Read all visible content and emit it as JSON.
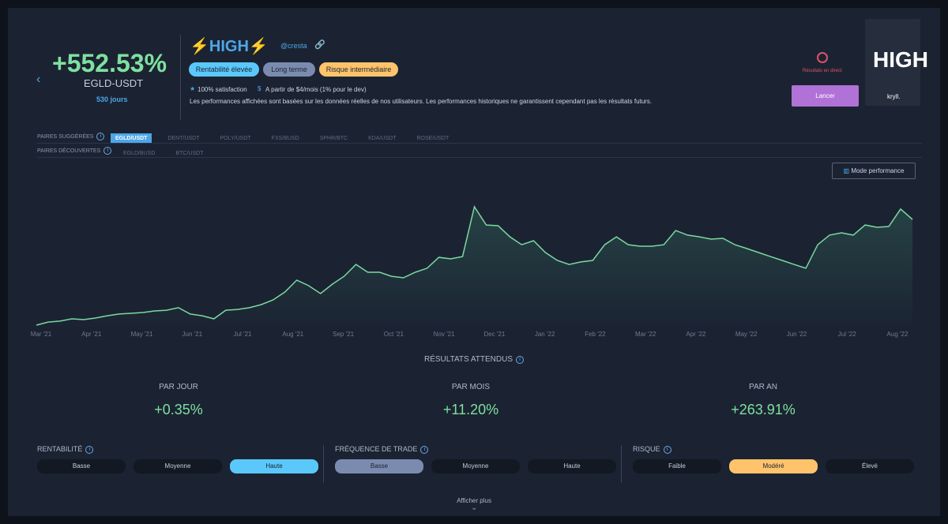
{
  "header": {
    "return": "+552.53%",
    "pair": "EGLD-USDT",
    "duration": "530 jours",
    "name": "⚡HIGH⚡",
    "author": "@cresta",
    "tags": [
      "Rentabilité élevée",
      "Long terme",
      "Risque intermédiaire"
    ],
    "satisfaction": "100% satisfaction",
    "price": "A partir de $4/mois (1% pour le dev)",
    "disclaimer": "Les performances affichées sont basées sur les données réelles de nos utilisateurs. Les performances historiques ne garantissent cependant pas les résultats futurs.",
    "live": "Résultats en direct",
    "launch": "Lancer",
    "logo": "HIGH",
    "logo_brand": "kryll."
  },
  "pairs": {
    "suggested_label": "PAIRES SUGGÉRÉES",
    "suggested": [
      "EGLD/USDT",
      "DENT/USDT",
      "POLY/USDT",
      "FXS/BUSD",
      "SPHR/BTC",
      "KDA/USDT",
      "ROSE/USDT"
    ],
    "discovered_label": "PAIRES DÉCOUVERTES",
    "discovered": [
      "EGLD/BUSD",
      "BTC/USDT"
    ]
  },
  "mode_button": "Mode performance",
  "chart_data": {
    "type": "line",
    "xticks": [
      "Mar '21",
      "Apr '21",
      "May '21",
      "Jun '21",
      "Jul '21",
      "Aug '21",
      "Sep '21",
      "Oct '21",
      "Nov '21",
      "Dec '21",
      "Jan '22",
      "Feb '22",
      "Mar '22",
      "Apr '22",
      "May '22",
      "Jun '22",
      "Jul '22",
      "Aug '22"
    ],
    "series": [
      {
        "color": "#7ad9a1",
        "values": [
          0,
          16,
          21,
          33,
          29,
          37,
          49,
          58,
          62,
          66,
          74,
          78,
          91,
          58,
          49,
          33,
          78,
          82,
          91,
          107,
          132,
          173,
          235,
          206,
          165,
          214,
          255,
          317,
          276,
          276,
          255,
          247,
          276,
          297,
          354,
          346,
          358,
          618,
          523,
          519,
          461,
          420,
          441,
          379,
          338,
          317,
          330,
          338,
          420,
          461,
          420,
          412,
          412,
          420,
          494,
          470,
          461,
          449,
          453,
          420,
          400,
          379,
          358,
          338,
          317,
          297,
          420,
          470,
          482,
          470,
          523,
          511,
          515,
          606,
          552
        ]
      }
    ]
  },
  "results": {
    "title": "RÉSULTATS ATTENDUS",
    "items": [
      {
        "label": "PAR JOUR",
        "value": "+0.35%"
      },
      {
        "label": "PAR MOIS",
        "value": "+11.20%"
      },
      {
        "label": "PAR AN",
        "value": "+263.91%"
      }
    ]
  },
  "filters": [
    {
      "label": "RENTABILITÉ",
      "options": [
        "Basse",
        "Moyenne",
        "Haute"
      ],
      "selected": 2,
      "color": "#5ac8fa"
    },
    {
      "label": "FRÉQUENCE DE TRADE",
      "options": [
        "Basse",
        "Moyenne",
        "Haute"
      ],
      "selected": 0,
      "color": "#7b8bb0"
    },
    {
      "label": "RISQUE",
      "options": [
        "Faible",
        "Modéré",
        "Élevé"
      ],
      "selected": 1,
      "color": "#ffc46b"
    }
  ],
  "more": "Afficher plus"
}
